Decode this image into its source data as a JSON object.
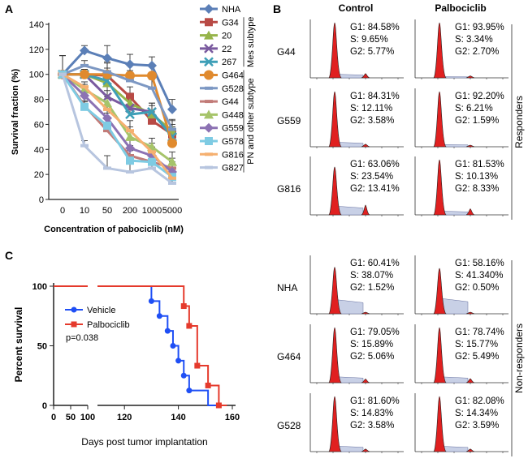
{
  "chart_data": [
    {
      "panel": "A",
      "type": "line",
      "xlabel": "Concentration of pabociclib (nM)",
      "ylabel": "Survival fraction (%)",
      "categories": [
        "0",
        "10",
        "50",
        "200",
        "1000",
        "5000"
      ],
      "ylim": [
        0,
        140
      ],
      "yticks": [
        0,
        20,
        40,
        60,
        80,
        100,
        120,
        140
      ],
      "groups": [
        {
          "label": "Mes subtype",
          "first": 1,
          "last": 4
        },
        {
          "label": "PN and other subtype",
          "first": 5,
          "last": 12
        }
      ],
      "series": [
        {
          "name": "NHA",
          "marker": "diamond",
          "color": "#5b7fb7",
          "values": [
            100,
            119,
            113,
            108,
            107,
            72
          ]
        },
        {
          "name": "G34",
          "marker": "square",
          "color": "#b84a45",
          "values": [
            100,
            100,
            99,
            82,
            63,
            52
          ]
        },
        {
          "name": "20",
          "marker": "triangle",
          "color": "#96b44a",
          "values": [
            100,
            100,
            93,
            77,
            68,
            55
          ]
        },
        {
          "name": "22",
          "marker": "x",
          "color": "#7a5a9f",
          "values": [
            100,
            100,
            82,
            73,
            70,
            50
          ]
        },
        {
          "name": "267",
          "marker": "x",
          "color": "#3e9fb7",
          "values": [
            100,
            100,
            95,
            68,
            70,
            50
          ]
        },
        {
          "name": "G464",
          "marker": "circle",
          "color": "#e08a2e",
          "values": [
            100,
            100,
            100,
            99,
            99,
            45
          ]
        },
        {
          "name": "G528",
          "marker": "dash",
          "color": "#7d98c3",
          "values": [
            100,
            107,
            102,
            95,
            89,
            56
          ]
        },
        {
          "name": "G44",
          "marker": "dash",
          "color": "#c27b78",
          "values": [
            100,
            75,
            55,
            35,
            30,
            25
          ]
        },
        {
          "name": "G448",
          "marker": "triangle",
          "color": "#a6c46a",
          "values": [
            100,
            88,
            77,
            50,
            42,
            30
          ]
        },
        {
          "name": "G559",
          "marker": "diamond",
          "color": "#8c72b3",
          "values": [
            100,
            83,
            65,
            41,
            35,
            22
          ]
        },
        {
          "name": "G578",
          "marker": "square",
          "color": "#7ecbe3",
          "values": [
            100,
            74,
            59,
            31,
            30,
            18
          ]
        },
        {
          "name": "G816",
          "marker": "dash",
          "color": "#f5b070",
          "values": [
            100,
            90,
            72,
            55,
            38,
            17
          ]
        },
        {
          "name": "G827",
          "marker": "dash",
          "color": "#b7c5df",
          "values": [
            100,
            43,
            25,
            22,
            25,
            13
          ]
        }
      ]
    },
    {
      "panel": "C",
      "type": "line",
      "subtype": "kaplan-meier",
      "xlabel": "Days post tumor implantation",
      "ylabel": "Percent survival",
      "xticks": [
        "0",
        "50",
        "100",
        "120",
        "140",
        "160"
      ],
      "yticks": [
        0,
        50,
        100
      ],
      "ylim": [
        0,
        100
      ],
      "pvalue": "p=0.038",
      "series": [
        {
          "name": "Vehicle",
          "color": "#1f4ff5",
          "marker": "circle",
          "steps": [
            [
              0,
              100
            ],
            [
              130,
              100
            ],
            [
              130,
              87.5
            ],
            [
              133,
              87.5
            ],
            [
              133,
              75
            ],
            [
              136,
              75
            ],
            [
              136,
              62.5
            ],
            [
              138,
              62.5
            ],
            [
              138,
              50
            ],
            [
              140,
              50
            ],
            [
              140,
              37.5
            ],
            [
              142,
              37.5
            ],
            [
              142,
              25
            ],
            [
              144,
              25
            ],
            [
              144,
              12.5
            ],
            [
              151,
              12.5
            ],
            [
              151,
              0
            ],
            [
              154,
              0
            ]
          ],
          "markers": [
            [
              130,
              87.5
            ],
            [
              133,
              75
            ],
            [
              136,
              62.5
            ],
            [
              138,
              50
            ],
            [
              140,
              37.5
            ],
            [
              142,
              25
            ],
            [
              144,
              12.5
            ]
          ]
        },
        {
          "name": "Palbociclib",
          "color": "#e53a2c",
          "marker": "square",
          "steps": [
            [
              0,
              100
            ],
            [
              142,
              100
            ],
            [
              142,
              83.3
            ],
            [
              144,
              83.3
            ],
            [
              144,
              66.7
            ],
            [
              147,
              66.7
            ],
            [
              147,
              33.3
            ],
            [
              151,
              33.3
            ],
            [
              151,
              16.7
            ],
            [
              155,
              16.7
            ],
            [
              155,
              0
            ],
            [
              158,
              0
            ]
          ],
          "markers": [
            [
              142,
              83.3
            ],
            [
              144,
              66.7
            ],
            [
              147,
              33.3
            ],
            [
              151,
              16.7
            ],
            [
              155,
              0
            ]
          ]
        }
      ]
    },
    {
      "panel": "B",
      "type": "histogram-grid",
      "columns": [
        "Control",
        "Palbociclib"
      ],
      "groups": [
        {
          "label": "Responders",
          "rows": [
            "G44",
            "G559",
            "G816"
          ]
        },
        {
          "label": "Non-responders",
          "rows": [
            "NHA",
            "G464",
            "G528"
          ]
        }
      ],
      "cells": [
        {
          "row": "G44",
          "col": "Control",
          "g1": "G1: 84.58%",
          "s": "S: 9.65%",
          "g2": "G2: 5.77%",
          "g1v": 84.58,
          "sv": 9.65,
          "g2v": 5.77
        },
        {
          "row": "G44",
          "col": "Palbociclib",
          "g1": "G1: 93.95%",
          "s": "S: 3.34%",
          "g2": "G2: 2.70%",
          "g1v": 93.95,
          "sv": 3.34,
          "g2v": 2.7
        },
        {
          "row": "G559",
          "col": "Control",
          "g1": "G1: 84.31%",
          "s": "S: 12.11%",
          "g2": "G2: 3.58%",
          "g1v": 84.31,
          "sv": 12.11,
          "g2v": 3.58
        },
        {
          "row": "G559",
          "col": "Palbociclib",
          "g1": "G1: 92.20%",
          "s": "S: 6.21%",
          "g2": "G2: 1.59%",
          "g1v": 92.2,
          "sv": 6.21,
          "g2v": 1.59
        },
        {
          "row": "G816",
          "col": "Control",
          "g1": "G1: 63.06%",
          "s": "S: 23.54%",
          "g2": "G2: 13.41%",
          "g1v": 63.06,
          "sv": 23.54,
          "g2v": 13.41
        },
        {
          "row": "G816",
          "col": "Palbociclib",
          "g1": "G1: 81.53%",
          "s": "S: 10.13%",
          "g2": "G2: 8.33%",
          "g1v": 81.53,
          "sv": 10.13,
          "g2v": 8.33
        },
        {
          "row": "NHA",
          "col": "Control",
          "g1": "G1: 60.41%",
          "s": "S: 38.07%",
          "g2": "G2: 1.52%",
          "g1v": 60.41,
          "sv": 38.07,
          "g2v": 1.52
        },
        {
          "row": "NHA",
          "col": "Palbociclib",
          "g1": "G1: 58.16%",
          "s": "S: 41.340%",
          "g2": "G2: 0.50%",
          "g1v": 58.16,
          "sv": 41.34,
          "g2v": 0.5
        },
        {
          "row": "G464",
          "col": "Control",
          "g1": "G1: 79.05%",
          "s": "S: 15.89%",
          "g2": "G2: 5.06%",
          "g1v": 79.05,
          "sv": 15.89,
          "g2v": 5.06
        },
        {
          "row": "G464",
          "col": "Palbociclib",
          "g1": "G1: 78.74%",
          "s": "S: 15.77%",
          "g2": "G2: 5.49%",
          "g1v": 78.74,
          "sv": 15.77,
          "g2v": 5.49
        },
        {
          "row": "G528",
          "col": "Control",
          "g1": "G1: 81.60%",
          "s": "S: 14.83%",
          "g2": "G2: 3.58%",
          "g1v": 81.6,
          "sv": 14.83,
          "g2v": 3.58
        },
        {
          "row": "G528",
          "col": "Palbociclib",
          "g1": "G1: 82.08%",
          "s": "S: 14.34%",
          "g2": "G2: 3.59%",
          "g1v": 82.08,
          "sv": 14.34,
          "g2v": 3.59
        }
      ]
    }
  ]
}
